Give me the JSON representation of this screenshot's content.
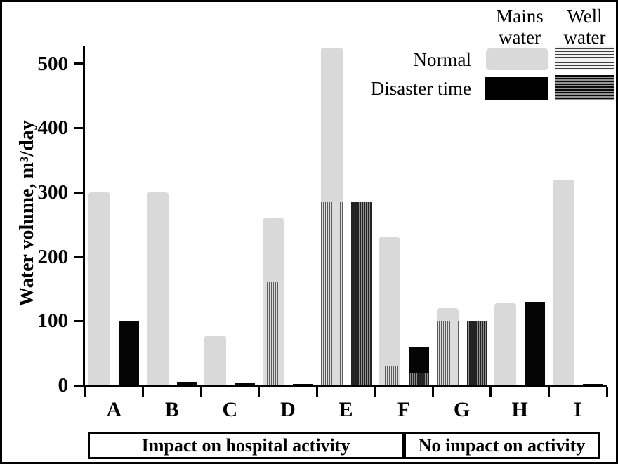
{
  "figure": {
    "ylabel": "Water volume, m³/day",
    "background_color": "#ffffff",
    "border_color": "#000000"
  },
  "legend": {
    "columns": [
      "Mains water",
      "Well water"
    ],
    "rows": [
      "Normal",
      "Disaster time"
    ],
    "swatch_colors": {
      "normal_mains": "#d9d9d9",
      "disaster_mains": "#000000",
      "normal_well_pattern": "thin dark horizontal stripes on light",
      "disaster_well_pattern": "dense dark horizontal stripes"
    }
  },
  "chart_data": {
    "type": "bar",
    "title": "",
    "xlabel": "",
    "ylabel": "Water volume, m³/day",
    "ylim": [
      0,
      527
    ],
    "yticks": [
      0,
      100,
      200,
      300,
      400,
      500
    ],
    "grid": false,
    "legend_position": "top-right",
    "categories": [
      "A",
      "B",
      "C",
      "D",
      "E",
      "F",
      "G",
      "H",
      "I"
    ],
    "series": [
      {
        "name": "Normal - mains water",
        "stack": "normal",
        "type_key": "mains_normal",
        "values": [
          300,
          300,
          78,
          100,
          240,
          200,
          20,
          128,
          320
        ]
      },
      {
        "name": "Normal - well water",
        "stack": "normal",
        "type_key": "well_normal",
        "values": [
          0,
          0,
          0,
          160,
          285,
          30,
          100,
          0,
          0
        ]
      },
      {
        "name": "Disaster time - mains water",
        "stack": "disaster",
        "type_key": "mains_disaster",
        "values": [
          100,
          6,
          3,
          2,
          0,
          40,
          0,
          130,
          2
        ]
      },
      {
        "name": "Disaster time - well water",
        "stack": "disaster",
        "type_key": "well_disaster",
        "values": [
          0,
          0,
          0,
          0,
          285,
          20,
          100,
          0,
          0
        ]
      }
    ],
    "stack_totals_note": {
      "normal_totals": [
        300,
        300,
        78,
        260,
        525,
        230,
        120,
        128,
        320
      ],
      "disaster_totals": [
        100,
        6,
        3,
        2,
        285,
        60,
        100,
        130,
        2
      ]
    }
  },
  "group_labels": [
    {
      "label": "Impact on hospital activity",
      "categories": [
        "A",
        "B",
        "C",
        "D",
        "E",
        "F"
      ]
    },
    {
      "label": "No impact on activity",
      "categories": [
        "G",
        "H",
        "I"
      ]
    }
  ]
}
